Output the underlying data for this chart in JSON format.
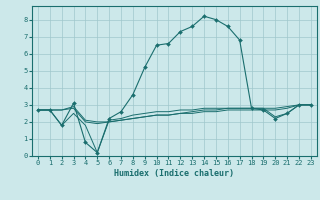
{
  "xlabel": "Humidex (Indice chaleur)",
  "bg_color": "#cce8ea",
  "grid_color": "#a0c8cc",
  "line_color": "#1a6e6e",
  "xlim": [
    -0.5,
    23.5
  ],
  "ylim": [
    0,
    8.8
  ],
  "xticks": [
    0,
    1,
    2,
    3,
    4,
    5,
    6,
    7,
    8,
    9,
    10,
    11,
    12,
    13,
    14,
    15,
    16,
    17,
    18,
    19,
    20,
    21,
    22,
    23
  ],
  "yticks": [
    0,
    1,
    2,
    3,
    4,
    5,
    6,
    7,
    8
  ],
  "curve_main_x": [
    0,
    1,
    2,
    3,
    4,
    5,
    6,
    7,
    8,
    9,
    10,
    11,
    12,
    13,
    14,
    15,
    16,
    17,
    18,
    19,
    20,
    21,
    22,
    23
  ],
  "curve_main_y": [
    2.7,
    2.7,
    1.8,
    3.1,
    0.8,
    0.2,
    2.2,
    2.6,
    3.6,
    5.2,
    6.5,
    6.6,
    7.3,
    7.6,
    8.2,
    8.0,
    7.6,
    6.8,
    2.8,
    2.7,
    2.2,
    2.5,
    3.0,
    3.0
  ],
  "curve_flat1_x": [
    0,
    1,
    2,
    3,
    4,
    5,
    6,
    7,
    8,
    9,
    10,
    11,
    12,
    13,
    14,
    15,
    16,
    17,
    18,
    19,
    20,
    21,
    22,
    23
  ],
  "curve_flat1_y": [
    2.7,
    2.7,
    1.8,
    2.5,
    1.8,
    0.2,
    2.1,
    2.2,
    2.4,
    2.5,
    2.6,
    2.6,
    2.7,
    2.7,
    2.8,
    2.8,
    2.8,
    2.8,
    2.8,
    2.8,
    2.3,
    2.5,
    3.0,
    3.0
  ],
  "curve_flat2_x": [
    0,
    1,
    2,
    3,
    4,
    5,
    6,
    7,
    8,
    9,
    10,
    11,
    12,
    13,
    14,
    15,
    16,
    17,
    18,
    19,
    20,
    21,
    22,
    23
  ],
  "curve_flat2_y": [
    2.7,
    2.7,
    2.7,
    2.8,
    2.0,
    1.9,
    2.0,
    2.1,
    2.2,
    2.3,
    2.4,
    2.4,
    2.5,
    2.5,
    2.6,
    2.6,
    2.7,
    2.7,
    2.7,
    2.7,
    2.7,
    2.8,
    3.0,
    3.0
  ],
  "curve_flat3_x": [
    0,
    1,
    2,
    3,
    4,
    5,
    6,
    7,
    8,
    9,
    10,
    11,
    12,
    13,
    14,
    15,
    16,
    17,
    18,
    19,
    20,
    21,
    22,
    23
  ],
  "curve_flat3_y": [
    2.7,
    2.7,
    2.7,
    2.9,
    2.1,
    2.0,
    2.0,
    2.1,
    2.2,
    2.3,
    2.4,
    2.4,
    2.5,
    2.6,
    2.7,
    2.7,
    2.8,
    2.8,
    2.8,
    2.8,
    2.8,
    2.9,
    3.0,
    3.0
  ]
}
